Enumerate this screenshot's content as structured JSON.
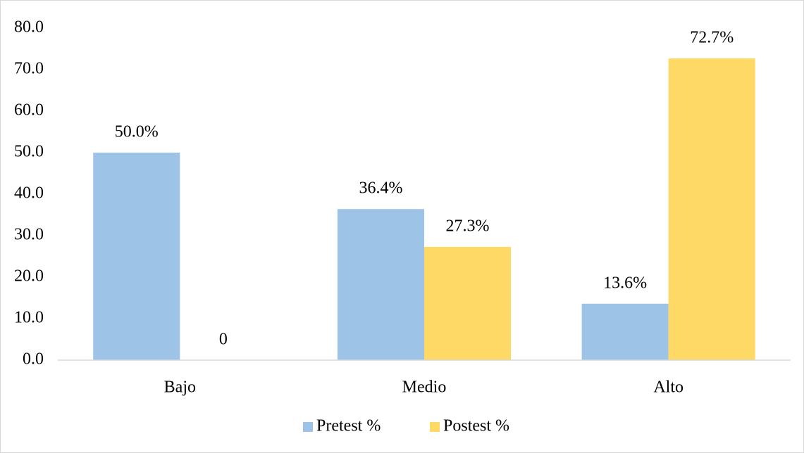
{
  "chart_data": {
    "type": "bar",
    "categories": [
      "Bajo",
      "Medio",
      "Alto"
    ],
    "series": [
      {
        "name": "Pretest %",
        "color": "#9dc3e6",
        "values": [
          50.0,
          36.4,
          13.6
        ],
        "value_labels": [
          "50.0%",
          "36.4%",
          "13.6%"
        ]
      },
      {
        "name": "Postest %",
        "color": "#ffd966",
        "values": [
          0,
          27.3,
          72.7
        ],
        "value_labels": [
          "0",
          "27.3%",
          "72.7%"
        ]
      }
    ],
    "ylim": [
      0,
      80
    ],
    "yticks": [
      {
        "value": 0,
        "label": "0.0"
      },
      {
        "value": 10,
        "label": "10.0"
      },
      {
        "value": 20,
        "label": "20.0"
      },
      {
        "value": 30,
        "label": "30.0"
      },
      {
        "value": 40,
        "label": "40.0"
      },
      {
        "value": 50,
        "label": "50.0"
      },
      {
        "value": 60,
        "label": "60.0"
      },
      {
        "value": 70,
        "label": "70.0"
      },
      {
        "value": 80,
        "label": "80.0"
      }
    ],
    "grid": false,
    "legend": "bottom"
  }
}
